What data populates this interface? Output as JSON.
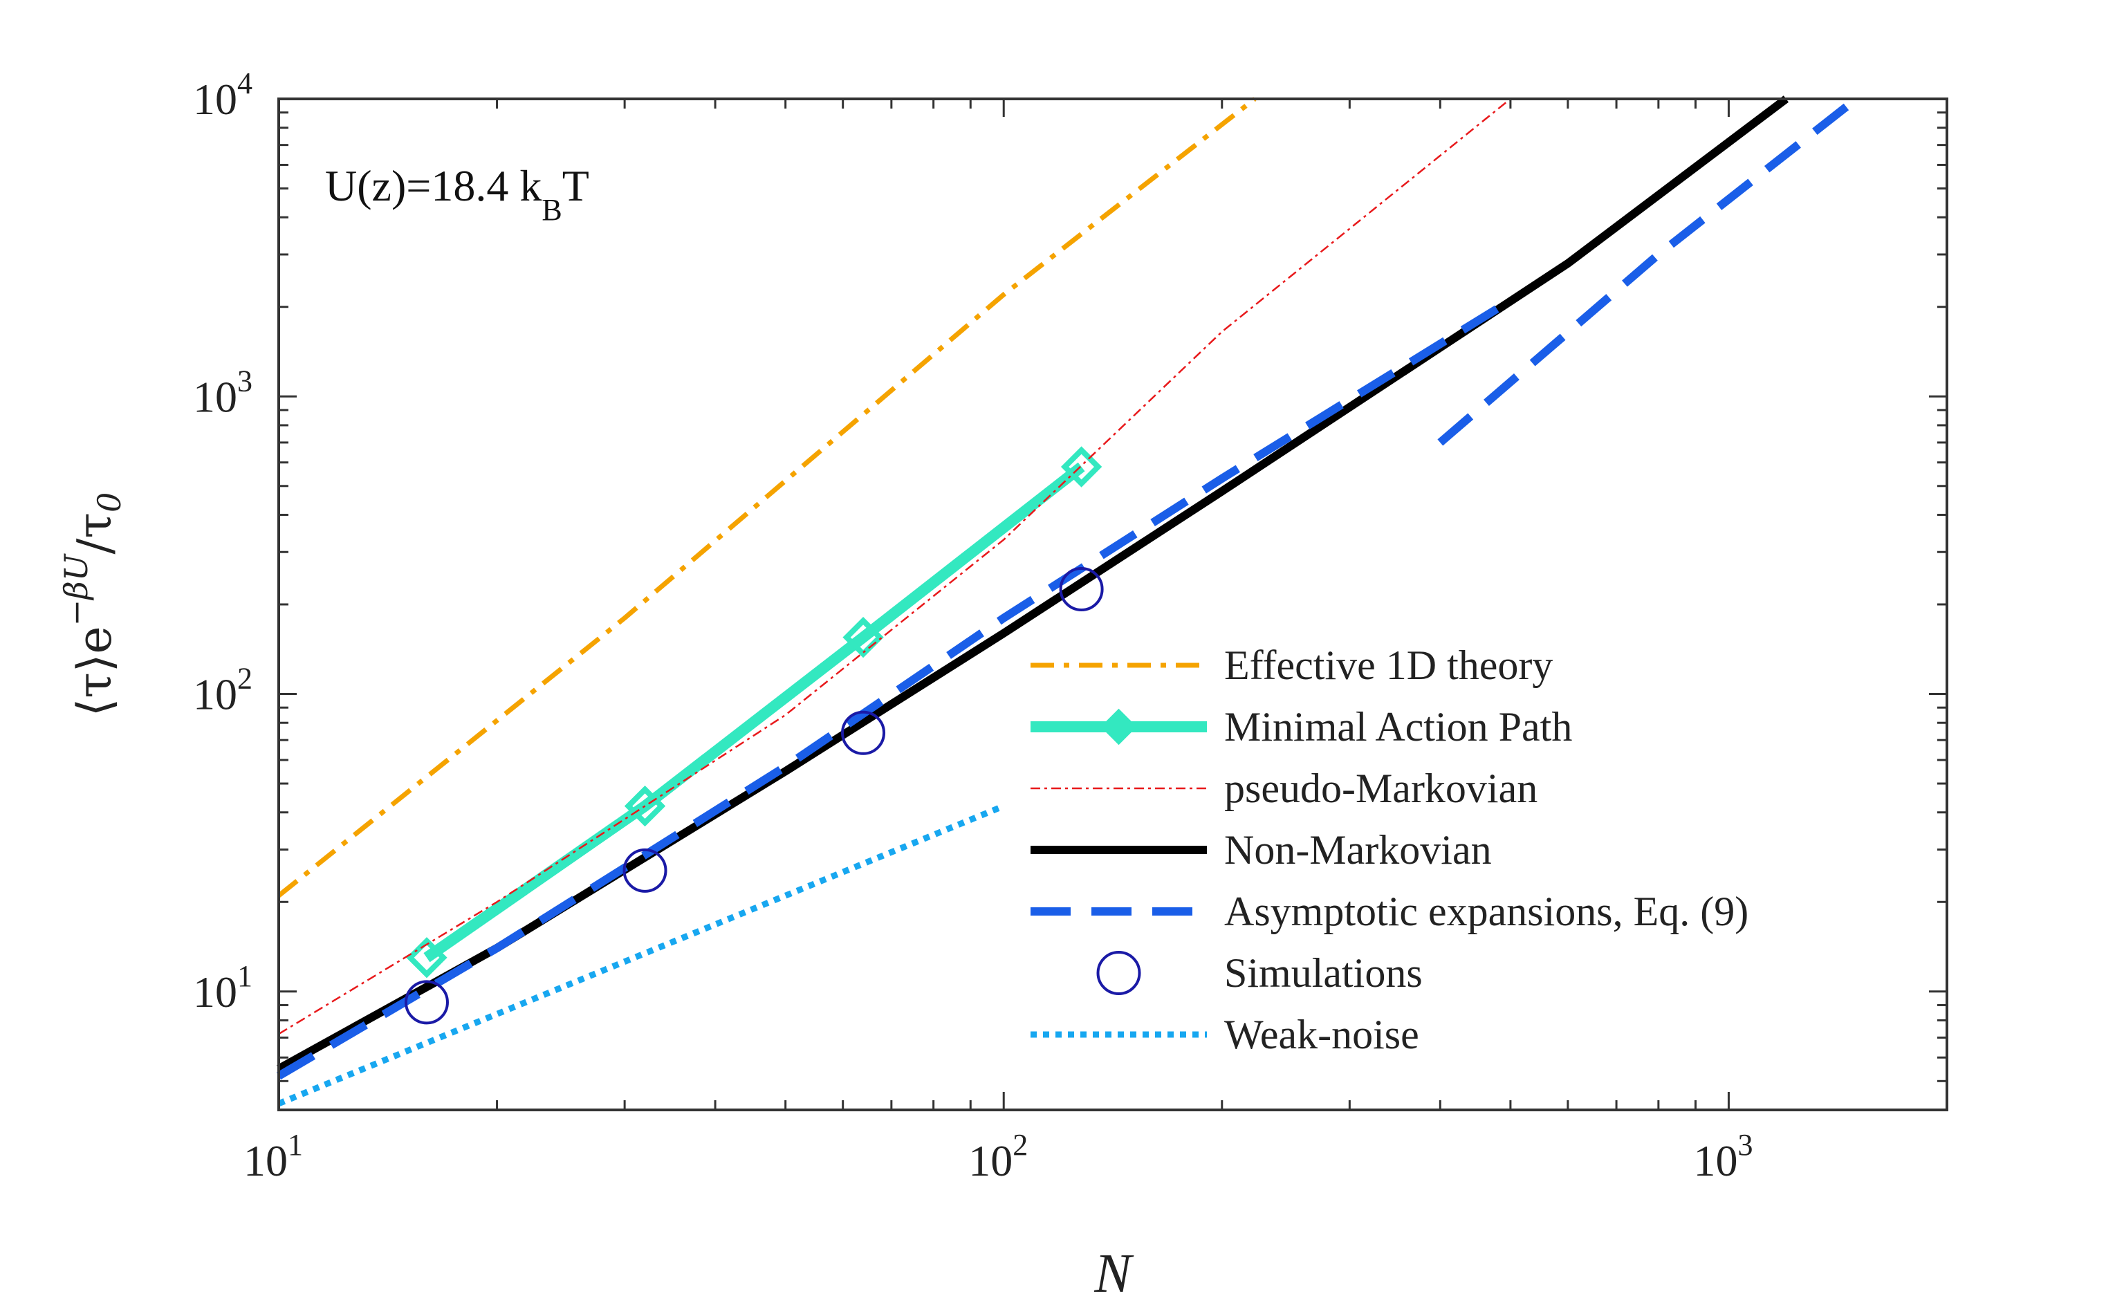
{
  "chart_data": {
    "type": "line",
    "x_scale": "log",
    "y_scale": "log",
    "xlim": [
      10,
      2000
    ],
    "ylim": [
      4,
      10000
    ],
    "xlabel": "N",
    "ylabel": {
      "prefix": "⟨τ⟩e",
      "superscript": "−βU",
      "suffix": "/τ",
      "subscript": "0"
    },
    "annotation": {
      "main": "U(z)=18.4 k",
      "sub": "B",
      "tail": "T"
    },
    "x_ticks": [
      {
        "value": 10,
        "base": "10",
        "exp": "1"
      },
      {
        "value": 100,
        "base": "10",
        "exp": "2"
      },
      {
        "value": 1000,
        "base": "10",
        "exp": "3"
      }
    ],
    "y_ticks": [
      {
        "value": 10,
        "base": "10",
        "exp": "1"
      },
      {
        "value": 100,
        "base": "10",
        "exp": "2"
      },
      {
        "value": 1000,
        "base": "10",
        "exp": "3"
      },
      {
        "value": 10000,
        "base": "10",
        "exp": "4"
      }
    ],
    "series": [
      {
        "name": "Effective 1D theory",
        "color": "#f5a300",
        "style": "dashdot",
        "x": [
          10,
          30,
          100,
          222
        ],
        "y": [
          21,
          180,
          2200,
          10000
        ]
      },
      {
        "name": "Minimal Action Path",
        "color": "#33e8c0",
        "style": "solid-diamond",
        "x": [
          16,
          32,
          64,
          128
        ],
        "y": [
          13,
          42,
          155,
          580
        ]
      },
      {
        "name": "pseudo-Markovian",
        "color": "#e8191b",
        "style": "thin-dashdot",
        "x": [
          10,
          20,
          50,
          100,
          200,
          500
        ],
        "y": [
          7.2,
          20,
          85,
          330,
          1650,
          10000
        ]
      },
      {
        "name": "Non-Markovian",
        "color": "#000000",
        "style": "solid",
        "x": [
          10,
          20,
          50,
          100,
          200,
          600,
          1200
        ],
        "y": [
          5.5,
          14,
          55,
          160,
          480,
          2800,
          10000
        ]
      },
      {
        "name": "Asymptotic expansions, Eq. (9)",
        "color": "#1a5ee8",
        "style": "dashed",
        "segments": [
          {
            "x": [
              10,
              20,
              50,
              100,
              200,
              500
            ],
            "y": [
              5.2,
              14,
              57,
              180,
              530,
              2100
            ]
          },
          {
            "x": [
              400,
              800,
              1500
            ],
            "y": [
              700,
              3000,
              10000
            ]
          }
        ]
      },
      {
        "name": "Simulations",
        "color": "#1a1aa6",
        "style": "circle",
        "x": [
          16,
          32,
          64,
          128
        ],
        "y": [
          9.2,
          25.5,
          74,
          225
        ]
      },
      {
        "name": "Weak-noise",
        "color": "#17a7f0",
        "style": "dotted",
        "x": [
          10,
          100
        ],
        "y": [
          4.2,
          42
        ]
      }
    ]
  }
}
